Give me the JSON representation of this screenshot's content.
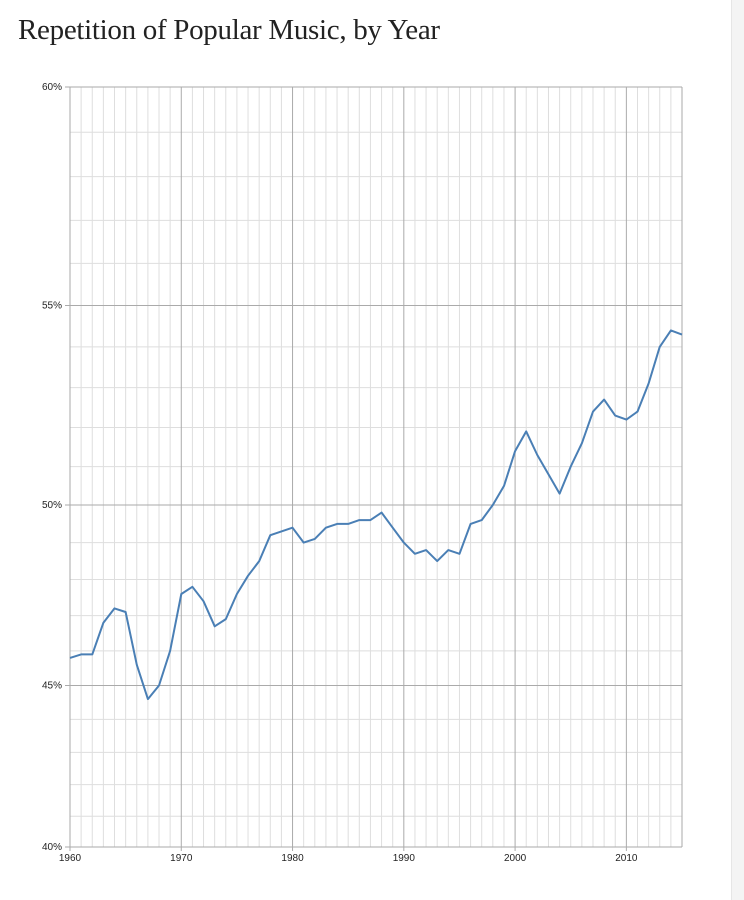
{
  "chart_data": {
    "type": "line",
    "title": "Repetition of Popular Music, by Year",
    "xlabel": "",
    "ylabel": "",
    "xlim": [
      1960,
      2015
    ],
    "ylim": [
      40,
      60
    ],
    "y_scale": "power (exponent 2)",
    "grid": true,
    "x_ticks": [
      "1960",
      "1970",
      "1980",
      "1990",
      "2000",
      "2010"
    ],
    "y_ticks": [
      "40%",
      "45%",
      "50%",
      "55%",
      "60%"
    ],
    "line_color": "#4a7fb5",
    "series": [
      {
        "x": [
          1960,
          1961,
          1962,
          1963,
          1964,
          1965,
          1966,
          1967,
          1968,
          1969,
          1970,
          1971,
          1972,
          1973,
          1974,
          1975,
          1976,
          1977,
          1978,
          1979,
          1980,
          1981,
          1982,
          1983,
          1984,
          1985,
          1986,
          1987,
          1988,
          1989,
          1990,
          1991,
          1992,
          1993,
          1994,
          1995,
          1996,
          1997,
          1998,
          1999,
          2000,
          2001,
          2002,
          2003,
          2004,
          2005,
          2006,
          2007,
          2008,
          2009,
          2010,
          2011,
          2012,
          2013,
          2014,
          2015
        ],
        "values": [
          45.8,
          45.9,
          45.9,
          46.8,
          47.2,
          47.1,
          45.6,
          44.6,
          45.0,
          46.0,
          47.6,
          47.8,
          47.4,
          46.7,
          46.9,
          47.6,
          48.1,
          48.5,
          49.2,
          49.3,
          49.4,
          49.0,
          49.1,
          49.4,
          49.5,
          49.5,
          49.6,
          49.6,
          49.8,
          49.4,
          49.0,
          48.7,
          48.8,
          48.5,
          48.8,
          48.7,
          49.5,
          49.6,
          50.0,
          50.5,
          51.4,
          51.9,
          51.3,
          50.8,
          50.3,
          51.0,
          51.6,
          52.4,
          52.7,
          52.3,
          52.2,
          52.4,
          53.1,
          54.0,
          54.4,
          54.3
        ]
      }
    ]
  }
}
